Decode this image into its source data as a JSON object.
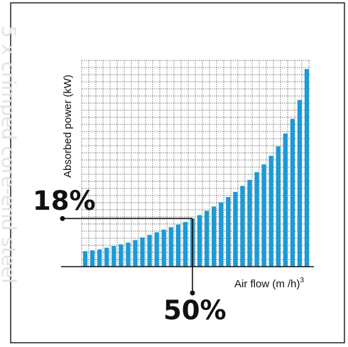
{
  "chart_data": {
    "type": "bar",
    "title": "",
    "ylabel": "Absorbed power (kW)",
    "xlabel": "Air flow (m /h)",
    "xlabel_sup": "3",
    "x": [
      1,
      2,
      3,
      4,
      5,
      6,
      7,
      8,
      9,
      10,
      11,
      12,
      13,
      14,
      15,
      16,
      17,
      18,
      19,
      20,
      21,
      22,
      23,
      24,
      25,
      26,
      27,
      28,
      29,
      30,
      31,
      32
    ],
    "values": [
      0.9,
      0.95,
      1.0,
      1.1,
      1.2,
      1.3,
      1.4,
      1.55,
      1.7,
      1.85,
      2.0,
      2.15,
      2.3,
      2.45,
      2.6,
      2.8,
      3.0,
      3.25,
      3.5,
      3.75,
      4.05,
      4.35,
      4.7,
      5.05,
      5.5,
      5.95,
      6.45,
      7.0,
      7.75,
      8.6,
      9.7,
      11.5
    ],
    "ylim": [
      0,
      12
    ],
    "grid": true,
    "annotations": {
      "y_marker": {
        "label": "18%",
        "bar_index": 15
      },
      "x_marker": {
        "label": "50%",
        "bar_index": 15
      }
    },
    "colors": {
      "bar": "#1a9bd6",
      "grid": "#555555",
      "axis": "#111111",
      "border": "#222222",
      "text": "#111111",
      "watermark": "#e2e2e2"
    }
  },
  "background_watermark": "5 x crimped core-end steel"
}
